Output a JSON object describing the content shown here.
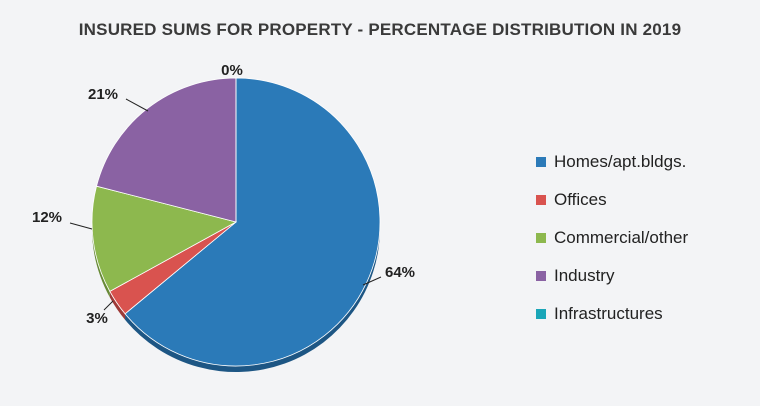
{
  "chart_data": {
    "type": "pie",
    "title": "INSURED SUMS FOR PROPERTY - PERCENTAGE DISTRIBUTION IN 2019",
    "slices": [
      {
        "name": "Homes/apt.bldgs.",
        "value": 64,
        "label": "64%",
        "color": "#2b7ab8",
        "side_color": "#1d5684"
      },
      {
        "name": "Offices",
        "value": 3,
        "label": "3%",
        "color": "#d9534f",
        "side_color": "#9e3a37"
      },
      {
        "name": "Commercial/other",
        "value": 12,
        "label": "12%",
        "color": "#8db84e",
        "side_color": "#678a36"
      },
      {
        "name": "Industry",
        "value": 21,
        "label": "21%",
        "color": "#8a62a3",
        "side_color": "#634675"
      },
      {
        "name": "Infrastructures",
        "value": 0,
        "label": "0%",
        "color": "#1aa6b8",
        "side_color": "#137a88"
      }
    ],
    "legend_position": "right"
  }
}
